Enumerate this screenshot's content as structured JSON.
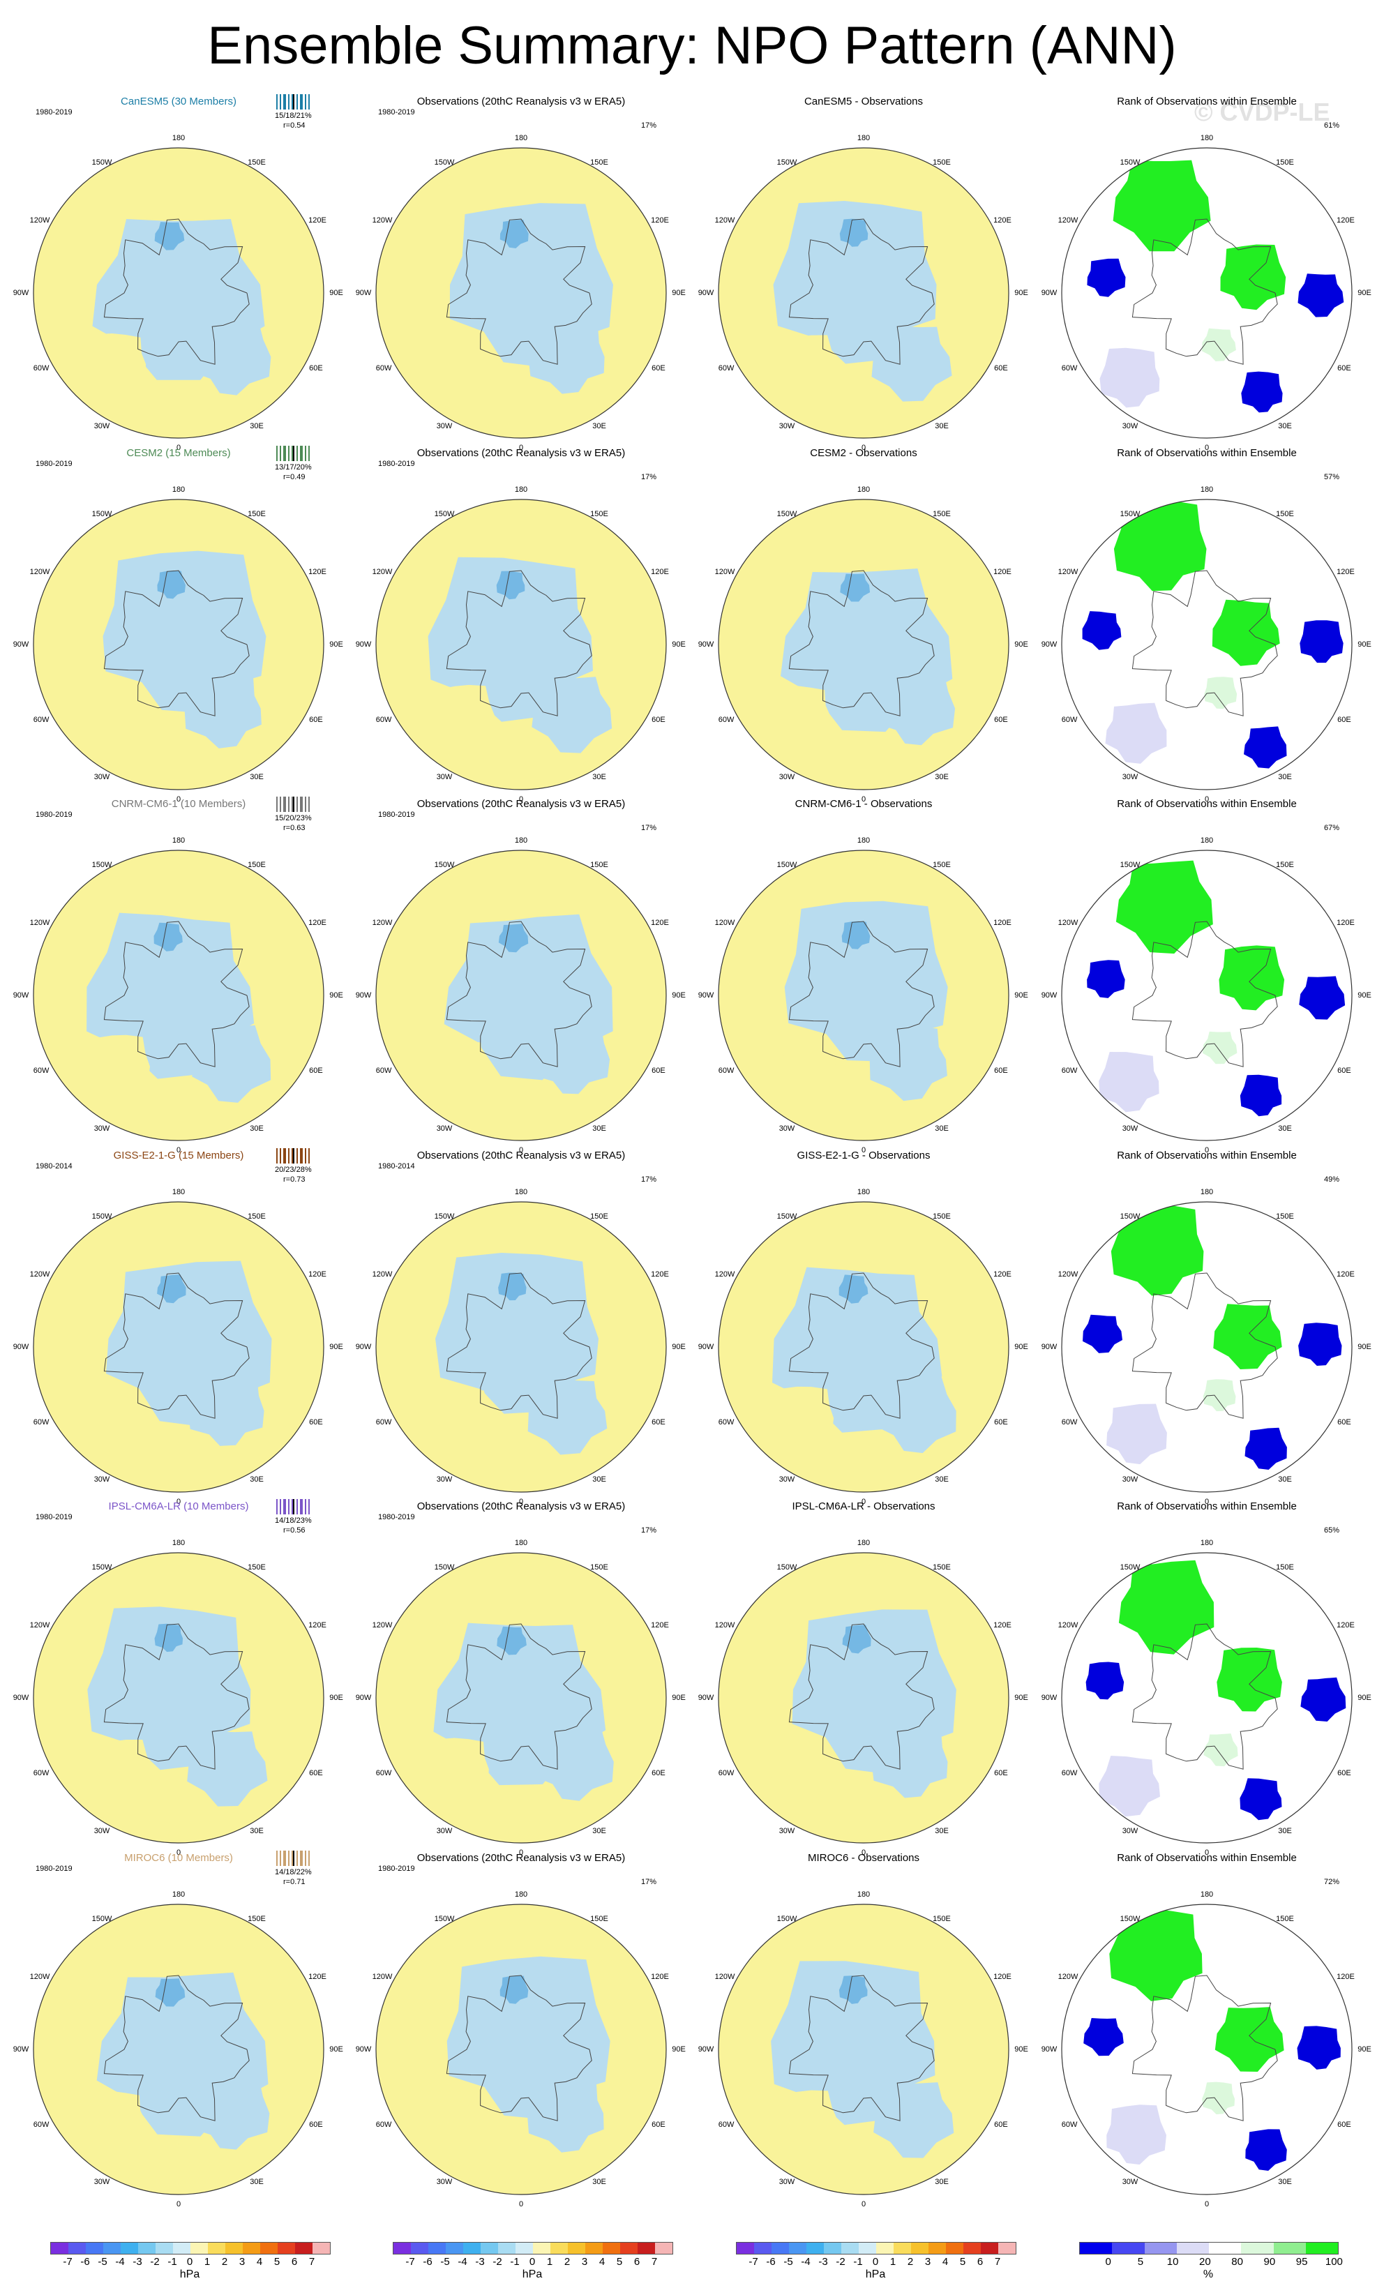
{
  "title": "Ensemble Summary: NPO Pattern (ANN)",
  "watermark": "© CVDP-LE",
  "obs_title": "Observations (20thC Reanalysis v3 w ERA5)",
  "rank_title": "Rank of Observations within Ensemble",
  "obs_pct": "17%",
  "grid_labels": {
    "top": "180",
    "bottom": "0",
    "lt": "150W",
    "rt": "150E",
    "l2": "120W",
    "r2": "120E",
    "l3": "90W",
    "r3": "90E",
    "l4": "60W",
    "r4": "60E",
    "lb": "30W",
    "rb": "30E"
  },
  "colors": {
    "positive": "#f9f39a",
    "negative": "#b8dcef",
    "neg_core": "#75b8e4",
    "rank_hi": "#22ee22",
    "rank_lo": "#0000dd",
    "rank_mid": "#dcdcf6",
    "rank_lt": "#dcf8dc"
  },
  "rows": [
    {
      "model": "CanESM5 (30 Members)",
      "model_color": "#1c7ea6",
      "period": "1980-2019",
      "stats": "15/18/21%",
      "corr": "r=0.54",
      "diff_title": "CanESM5 - Observations",
      "rank_pct": "61%"
    },
    {
      "model": "CESM2 (15 Members)",
      "model_color": "#4d8a55",
      "period": "1980-2019",
      "stats": "13/17/20%",
      "corr": "r=0.49",
      "diff_title": "CESM2 - Observations",
      "rank_pct": "57%"
    },
    {
      "model": "CNRM-CM6-1 (10 Members)",
      "model_color": "#777777",
      "period": "1980-2019",
      "stats": "15/20/23%",
      "corr": "r=0.63",
      "diff_title": "CNRM-CM6-1 - Observations",
      "rank_pct": "67%"
    },
    {
      "model": "GISS-E2-1-G (15 Members)",
      "model_color": "#8b4513",
      "period": "1980-2014",
      "stats": "20/23/28%",
      "corr": "r=0.73",
      "diff_title": "GISS-E2-1-G - Observations",
      "rank_pct": "49%"
    },
    {
      "model": "IPSL-CM6A-LR (10 Members)",
      "model_color": "#7b55c8",
      "period": "1980-2019",
      "stats": "14/18/23%",
      "corr": "r=0.56",
      "diff_title": "IPSL-CM6A-LR - Observations",
      "rank_pct": "65%"
    },
    {
      "model": "MIROC6 (10 Members)",
      "model_color": "#c8a06e",
      "period": "1980-2019",
      "stats": "14/18/22%",
      "corr": "r=0.71",
      "diff_title": "MIROC6 - Observations",
      "rank_pct": "72%"
    }
  ],
  "colorbar_hpa": {
    "ticks": [
      "-7",
      "-6",
      "-5",
      "-4",
      "-3",
      "-2",
      "-1",
      "0",
      "1",
      "2",
      "3",
      "4",
      "5",
      "6",
      "7"
    ],
    "colors": [
      "#7a2fe0",
      "#5a5af0",
      "#4878f5",
      "#4a96f2",
      "#3fb0ef",
      "#75c8f0",
      "#a9dcf2",
      "#d2ecf6",
      "#fbf5b4",
      "#f9dc5c",
      "#f6c12c",
      "#f49c16",
      "#f07010",
      "#e5401f",
      "#c81e1e",
      "#f5b5b5"
    ],
    "unit": "hPa"
  },
  "colorbar_rank": {
    "ticks": [
      "0",
      "5",
      "10",
      "20",
      "80",
      "90",
      "95",
      "100"
    ],
    "colors": [
      "#0000ee",
      "#4747f2",
      "#9696f0",
      "#dcdcf6",
      "#ffffff",
      "#dcf8dc",
      "#90ee90",
      "#22ee22"
    ],
    "unit": "%"
  }
}
